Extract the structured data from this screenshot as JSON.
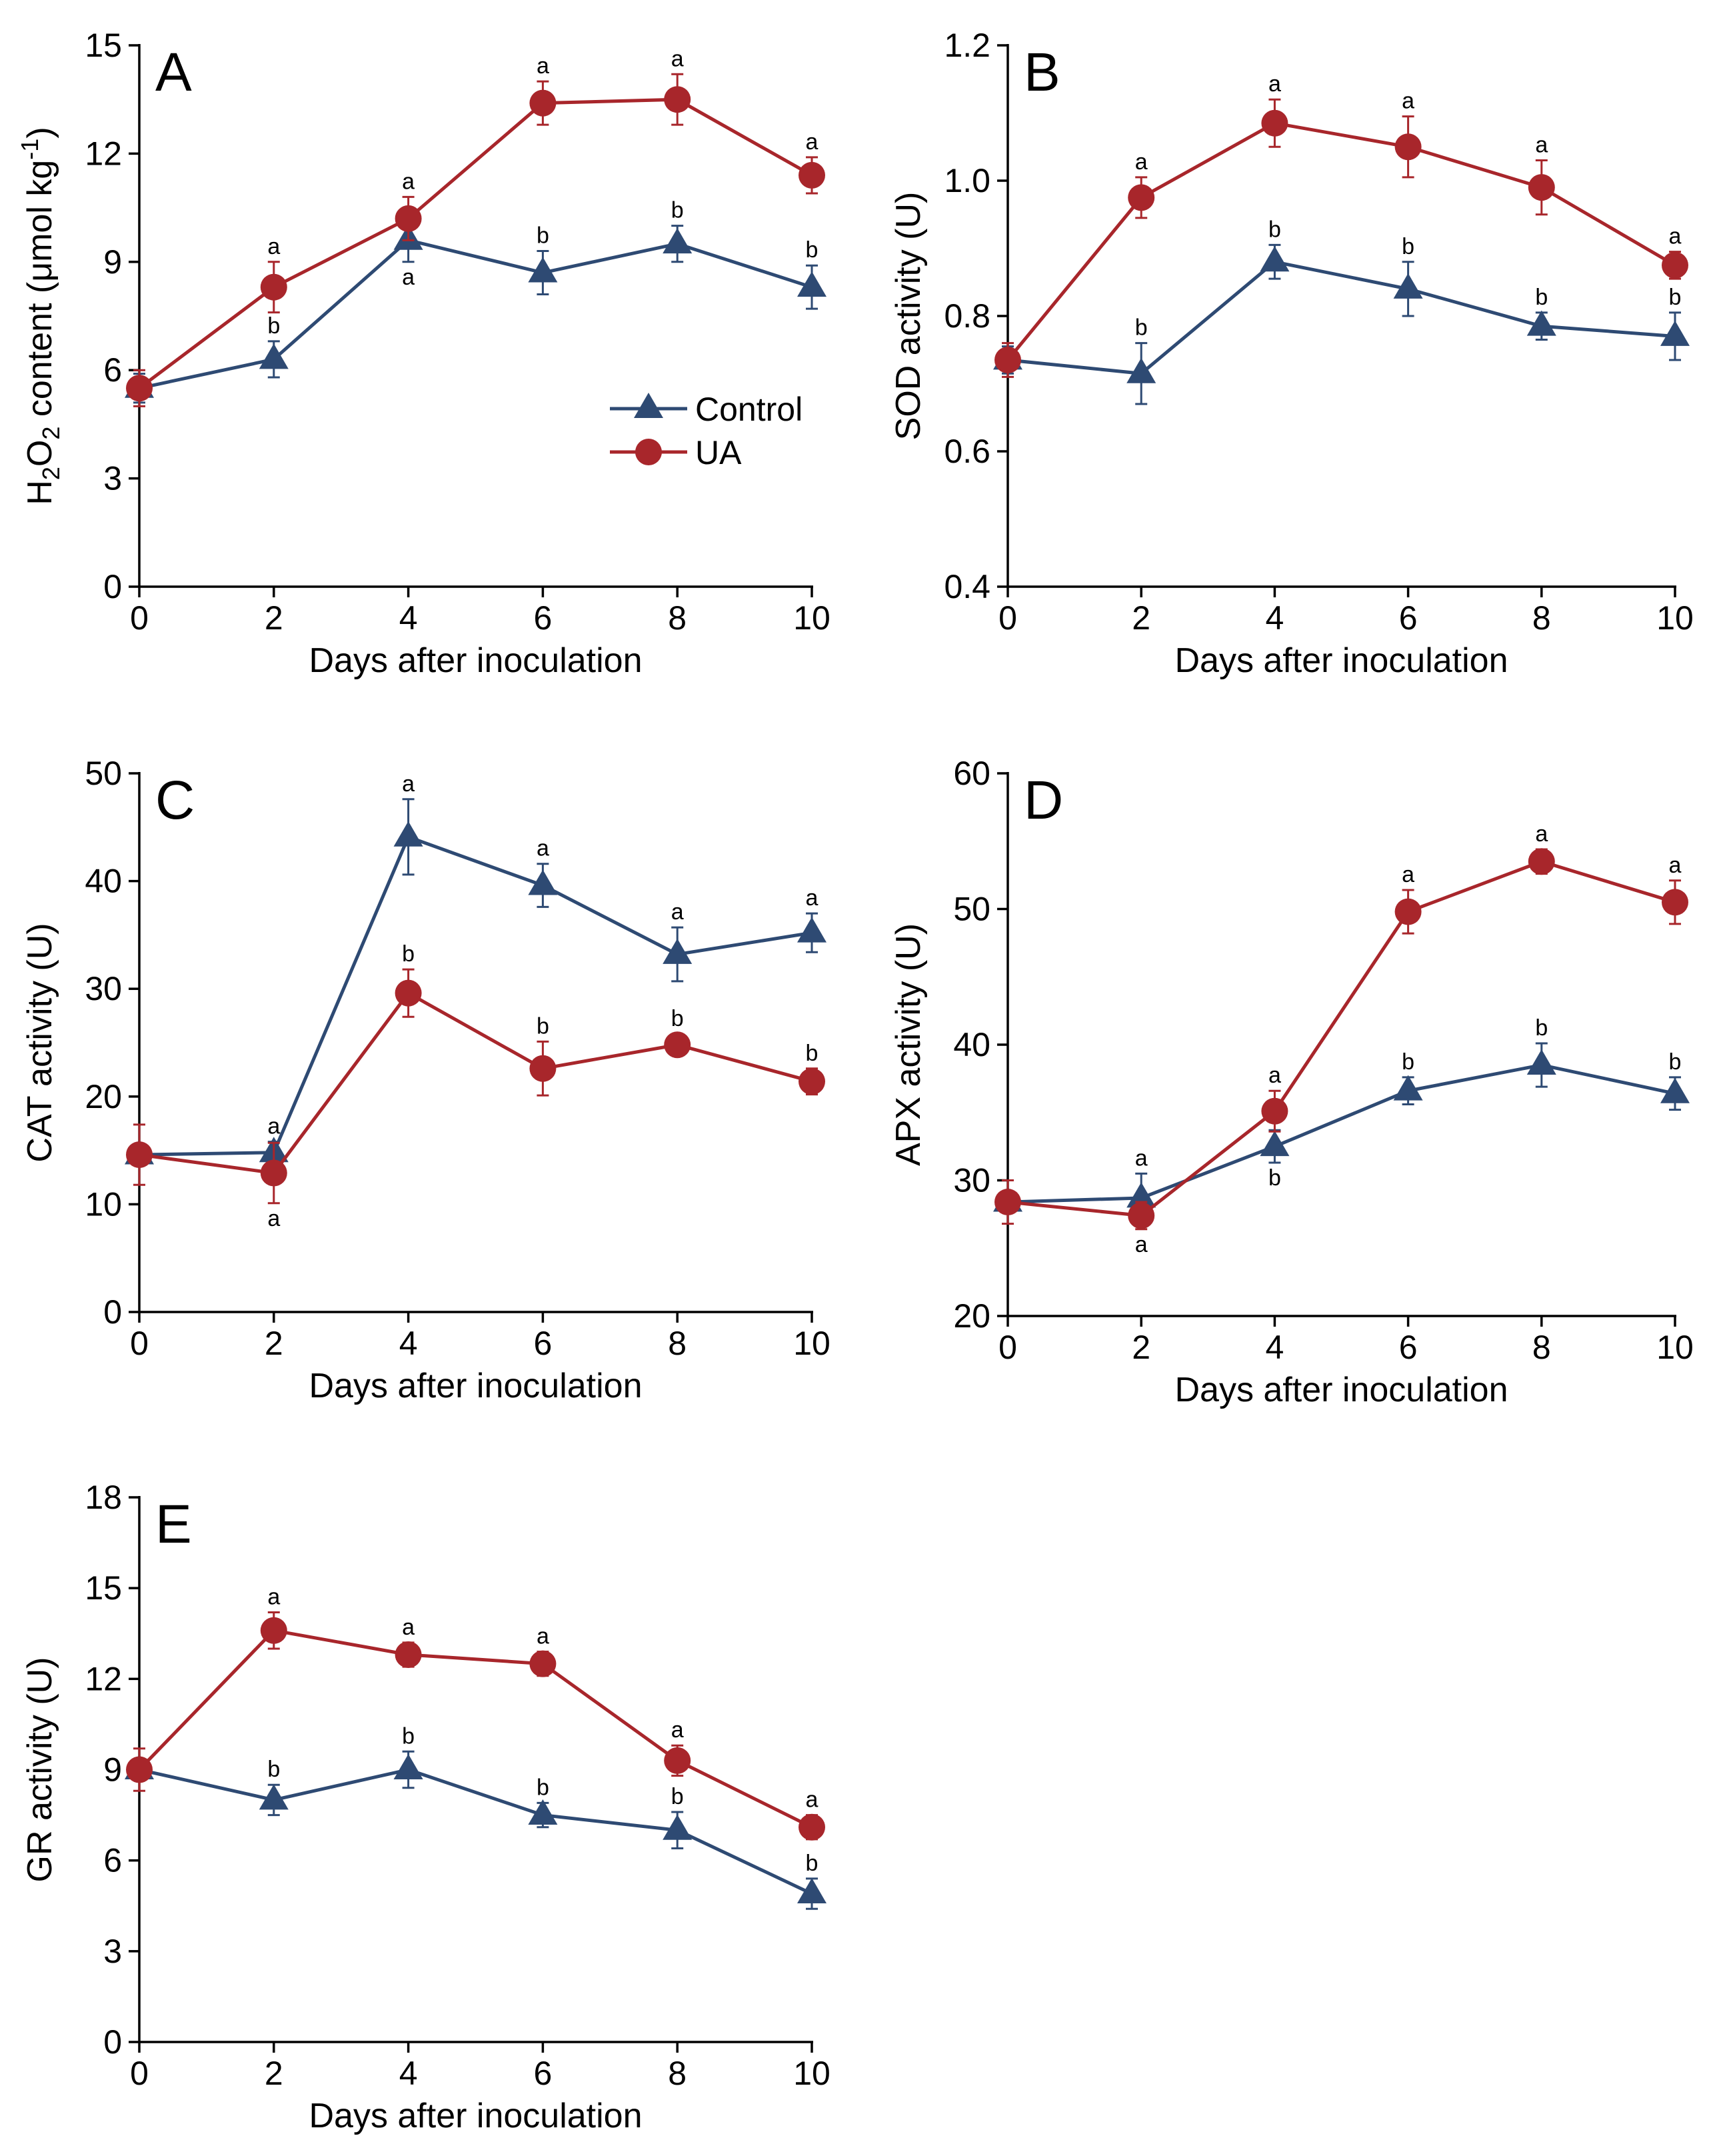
{
  "series_styles": {
    "control": {
      "color": "#2e4a73",
      "marker": "triangle"
    },
    "ua": {
      "color": "#a8262b",
      "marker": "circle"
    }
  },
  "legend": {
    "entries": [
      "Control",
      "UA"
    ]
  },
  "chart_data": [
    {
      "panel": "A",
      "type": "line",
      "xlabel": "Days after inoculation",
      "ylabel": "H2O2 content (μmol kg-1)",
      "ylabel_parts": {
        "p1": "H",
        "s1": "2",
        "p2": "O",
        "s2": "2",
        "p3": " content (μmol kg",
        "sup": "-1",
        "p4": ")"
      },
      "x": [
        0,
        2,
        4,
        6,
        8,
        10
      ],
      "xlim": [
        0,
        10
      ],
      "ylim": [
        0,
        15
      ],
      "yticks": [
        "0",
        "3",
        "6",
        "9",
        "12",
        "15"
      ],
      "xticks": [
        "0",
        "2",
        "4",
        "6",
        "8",
        "10"
      ],
      "series": [
        {
          "name": "Control",
          "key": "control",
          "values": [
            5.5,
            6.3,
            9.6,
            8.7,
            9.5,
            8.3
          ],
          "errors": [
            0.4,
            0.5,
            0.6,
            0.6,
            0.5,
            0.6
          ],
          "sig": [
            "",
            "b",
            "a",
            "b",
            "b",
            "b"
          ],
          "sig_pos": [
            "",
            "above",
            "below",
            "above",
            "above",
            "above"
          ]
        },
        {
          "name": "UA",
          "key": "ua",
          "values": [
            5.5,
            8.3,
            10.2,
            13.4,
            13.5,
            11.4
          ],
          "errors": [
            0.5,
            0.7,
            0.6,
            0.6,
            0.7,
            0.5
          ],
          "sig": [
            "",
            "a",
            "a",
            "a",
            "a",
            "a"
          ],
          "sig_pos": [
            "",
            "above",
            "above",
            "above",
            "above",
            "above"
          ]
        }
      ]
    },
    {
      "panel": "B",
      "type": "line",
      "xlabel": "Days after inoculation",
      "ylabel": "SOD activity (U)",
      "x": [
        0,
        2,
        4,
        6,
        8,
        10
      ],
      "xlim": [
        0,
        10
      ],
      "ylim": [
        0.4,
        1.2
      ],
      "yticks": [
        "0.4",
        "0.6",
        "0.8",
        "1.0",
        "1.2"
      ],
      "xticks": [
        "0",
        "2",
        "4",
        "6",
        "8",
        "10"
      ],
      "series": [
        {
          "name": "Control",
          "key": "control",
          "values": [
            0.735,
            0.715,
            0.88,
            0.84,
            0.785,
            0.77
          ],
          "errors": [
            0.02,
            0.045,
            0.025,
            0.04,
            0.02,
            0.035
          ],
          "sig": [
            "",
            "b",
            "b",
            "b",
            "b",
            "b"
          ],
          "sig_pos": [
            "",
            "above",
            "above",
            "above",
            "above",
            "above"
          ]
        },
        {
          "name": "UA",
          "key": "ua",
          "values": [
            0.735,
            0.975,
            1.085,
            1.05,
            0.99,
            0.875
          ],
          "errors": [
            0.025,
            0.03,
            0.035,
            0.045,
            0.04,
            0.02
          ],
          "sig": [
            "",
            "a",
            "a",
            "a",
            "a",
            "a"
          ],
          "sig_pos": [
            "",
            "above",
            "above",
            "above",
            "above",
            "above"
          ]
        }
      ]
    },
    {
      "panel": "C",
      "type": "line",
      "xlabel": "Days after inoculation",
      "ylabel": "CAT activity (U)",
      "x": [
        0,
        2,
        4,
        6,
        8,
        10
      ],
      "xlim": [
        0,
        10
      ],
      "ylim": [
        0,
        50
      ],
      "yticks": [
        "0",
        "10",
        "20",
        "30",
        "40",
        "50"
      ],
      "xticks": [
        "0",
        "2",
        "4",
        "6",
        "8",
        "10"
      ],
      "series": [
        {
          "name": "Control",
          "key": "control",
          "values": [
            14.6,
            14.8,
            44.1,
            39.6,
            33.2,
            35.2
          ],
          "errors": [
            0.6,
            1.0,
            3.5,
            2.0,
            2.5,
            1.8
          ],
          "sig": [
            "",
            "a",
            "a",
            "a",
            "a",
            "a"
          ],
          "sig_pos": [
            "",
            "above",
            "above",
            "above",
            "above",
            "above"
          ]
        },
        {
          "name": "UA",
          "key": "ua",
          "values": [
            14.6,
            12.9,
            29.6,
            22.6,
            24.8,
            21.4
          ],
          "errors": [
            2.8,
            2.8,
            2.2,
            2.5,
            1.0,
            1.2
          ],
          "sig": [
            "",
            "a",
            "b",
            "b",
            "b",
            "b"
          ],
          "sig_pos": [
            "",
            "below",
            "above",
            "above",
            "above",
            "above"
          ]
        }
      ]
    },
    {
      "panel": "D",
      "type": "line",
      "xlabel": "Days after inoculation",
      "ylabel": "APX activity (U)",
      "x": [
        0,
        2,
        4,
        6,
        8,
        10
      ],
      "xlim": [
        0,
        10
      ],
      "ylim": [
        20,
        60
      ],
      "yticks": [
        "20",
        "30",
        "40",
        "50",
        "60"
      ],
      "xticks": [
        "0",
        "2",
        "4",
        "6",
        "8",
        "10"
      ],
      "series": [
        {
          "name": "Control",
          "key": "control",
          "values": [
            28.4,
            28.7,
            32.5,
            36.6,
            38.5,
            36.4
          ],
          "errors": [
            0.5,
            1.8,
            1.2,
            1.0,
            1.6,
            1.2
          ],
          "sig": [
            "",
            "a",
            "b",
            "b",
            "b",
            "b"
          ],
          "sig_pos": [
            "",
            "above",
            "below",
            "above",
            "above",
            "above"
          ]
        },
        {
          "name": "UA",
          "key": "ua",
          "values": [
            28.4,
            27.4,
            35.1,
            49.8,
            53.5,
            50.5
          ],
          "errors": [
            1.6,
            1.0,
            1.5,
            1.6,
            0.9,
            1.6
          ],
          "sig": [
            "",
            "a",
            "a",
            "a",
            "a",
            "a"
          ],
          "sig_pos": [
            "",
            "below",
            "above",
            "above",
            "above",
            "above"
          ]
        }
      ]
    },
    {
      "panel": "E",
      "type": "line",
      "xlabel": "Days after inoculation",
      "ylabel": "GR activity (U)",
      "x": [
        0,
        2,
        4,
        6,
        8,
        10
      ],
      "xlim": [
        0,
        10
      ],
      "ylim": [
        0,
        18
      ],
      "yticks": [
        "0",
        "3",
        "6",
        "9",
        "12",
        "15",
        "18"
      ],
      "xticks": [
        "0",
        "2",
        "4",
        "6",
        "8",
        "10"
      ],
      "series": [
        {
          "name": "Control",
          "key": "control",
          "values": [
            9.0,
            8.0,
            9.0,
            7.5,
            7.0,
            4.9
          ],
          "errors": [
            0.3,
            0.5,
            0.6,
            0.4,
            0.6,
            0.5
          ],
          "sig": [
            "",
            "b",
            "b",
            "b",
            "b",
            "b"
          ],
          "sig_pos": [
            "",
            "above",
            "above",
            "above",
            "above",
            "above"
          ]
        },
        {
          "name": "UA",
          "key": "ua",
          "values": [
            9.0,
            13.6,
            12.8,
            12.5,
            9.3,
            7.1
          ],
          "errors": [
            0.7,
            0.6,
            0.4,
            0.4,
            0.5,
            0.4
          ],
          "sig": [
            "",
            "a",
            "a",
            "a",
            "a",
            "a"
          ],
          "sig_pos": [
            "",
            "above",
            "above",
            "above",
            "above",
            "above"
          ]
        }
      ]
    }
  ]
}
